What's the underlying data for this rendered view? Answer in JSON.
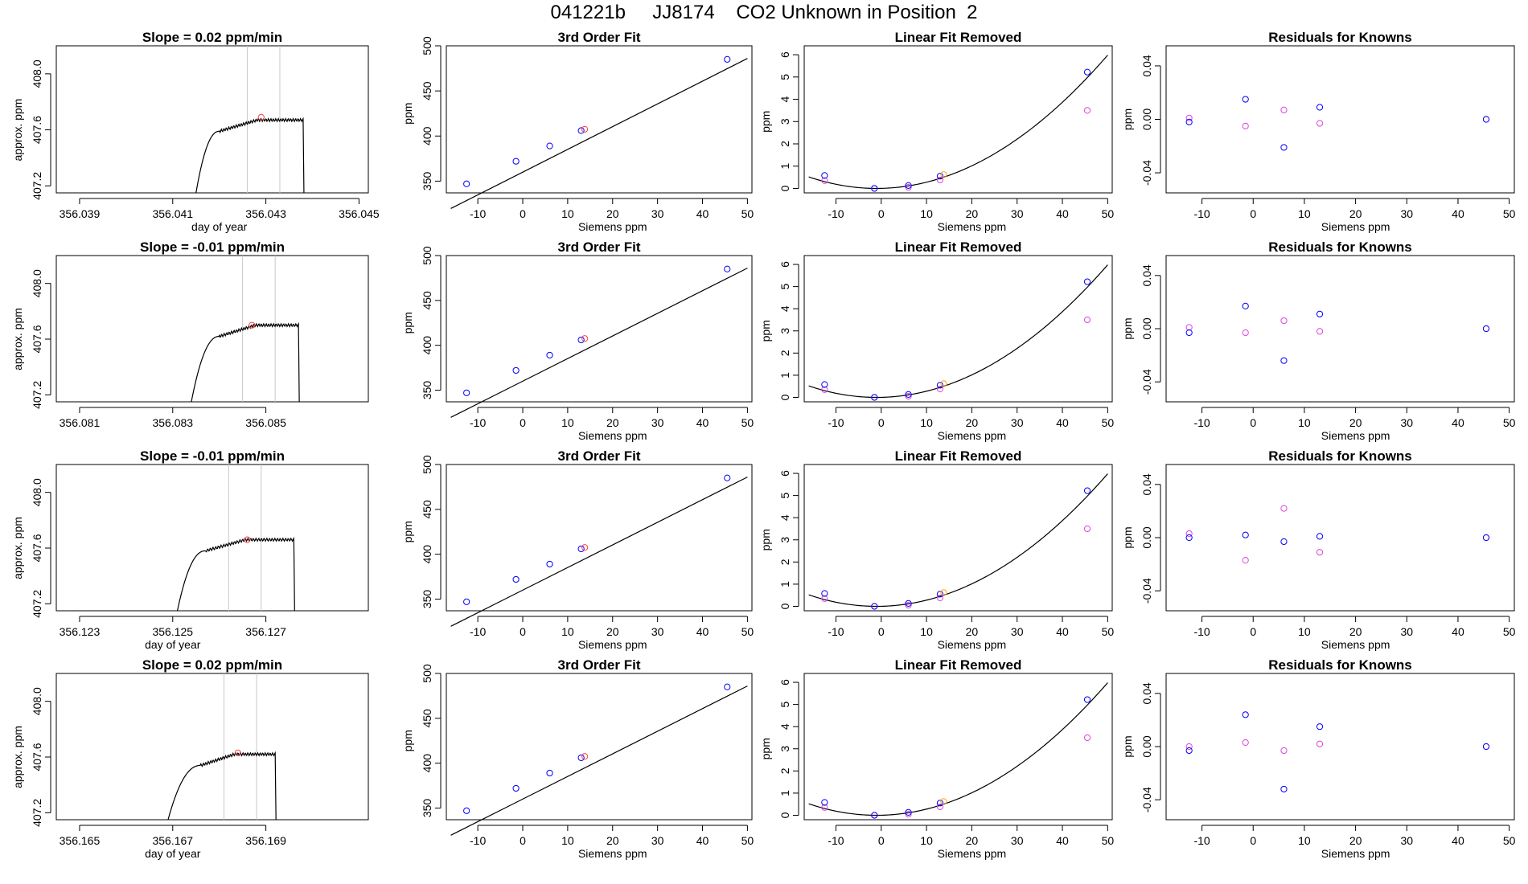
{
  "figure_title": "041221b     JJ8174    CO2 Unknown in Position  2",
  "colors": {
    "trace": "#000000",
    "marker_known": "#0000ff",
    "marker_alt": "#dd44dd",
    "marker_unknown": "#ff4040",
    "marker_unknown_alt": "#ffa500",
    "window": "#c8c8c8"
  },
  "rows": [
    {
      "trace": {
        "title": "Slope =  0.02  ppm/min",
        "xlabel": "day of year",
        "ylabel": "approx. ppm",
        "xticks": [
          "356.039",
          "356.041",
          "356.043",
          "356.045"
        ],
        "xtick_values": [
          356.039,
          356.041,
          356.043,
          356.045
        ],
        "xlim": [
          356.0385,
          356.0452
        ],
        "yticks": [
          "407.2",
          "407.6",
          "408.0"
        ],
        "ytick_values": [
          407.2,
          407.6,
          408.0
        ],
        "ylim": [
          407.15,
          408.2
        ],
        "rise_start": 356.0415,
        "plateau_start": 356.042,
        "end": 356.0438,
        "plateau": 407.67,
        "window": [
          356.0426,
          356.0433
        ],
        "unknown_point": [
          356.0429,
          407.69
        ]
      }
    },
    {
      "trace": {
        "title": "Slope =  -0.01  ppm/min",
        "xlabel": "",
        "ylabel": "approx. ppm",
        "xticks": [
          "356.081",
          "356.083",
          "356.085"
        ],
        "xtick_values": [
          356.081,
          356.083,
          356.085
        ],
        "xlim": [
          356.0805,
          356.0872
        ],
        "yticks": [
          "407.2",
          "407.6",
          "408.0"
        ],
        "ytick_values": [
          407.2,
          407.6,
          408.0
        ],
        "ylim": [
          407.15,
          408.2
        ],
        "rise_start": 356.0834,
        "plateau_start": 356.084,
        "end": 356.0857,
        "plateau": 407.7,
        "window": [
          356.0845,
          356.0852
        ],
        "unknown_point": [
          356.0847,
          407.7
        ]
      }
    },
    {
      "trace": {
        "title": "Slope =  -0.01  ppm/min",
        "xlabel": "day of year",
        "ylabel": "approx. ppm",
        "xticks": [
          "356.123",
          "356.125",
          "356.127"
        ],
        "xtick_values": [
          356.123,
          356.125,
          356.127
        ],
        "xlim": [
          356.1225,
          356.1292
        ],
        "yticks": [
          "407.2",
          "407.6",
          "408.0"
        ],
        "ytick_values": [
          407.2,
          407.6,
          408.0
        ],
        "ylim": [
          407.15,
          408.2
        ],
        "rise_start": 356.1251,
        "plateau_start": 356.1257,
        "end": 356.1276,
        "plateau": 407.66,
        "window": [
          356.1262,
          356.1269
        ],
        "unknown_point": [
          356.1266,
          407.66
        ]
      }
    },
    {
      "trace": {
        "title": "Slope =  0.02  ppm/min",
        "xlabel": "day of year",
        "ylabel": "approx. ppm",
        "xticks": [
          "356.165",
          "356.167",
          "356.169"
        ],
        "xtick_values": [
          356.165,
          356.167,
          356.169
        ],
        "xlim": [
          356.1645,
          356.1712
        ],
        "yticks": [
          "407.2",
          "407.6",
          "408.0"
        ],
        "ytick_values": [
          407.2,
          407.6,
          408.0
        ],
        "ylim": [
          407.15,
          408.2
        ],
        "rise_start": 356.1669,
        "plateau_start": 356.1676,
        "end": 356.1692,
        "plateau": 407.62,
        "window": [
          356.1681,
          356.1688
        ],
        "unknown_point": [
          356.1684,
          407.63
        ]
      }
    }
  ],
  "fit_panel": {
    "title": "3rd Order Fit",
    "xlabel": "Siemens ppm",
    "ylabel": "ppm",
    "xlim": [
      -17,
      51
    ],
    "xticks": [
      -10,
      0,
      10,
      20,
      30,
      40,
      50
    ],
    "ylim": [
      337,
      500
    ],
    "yticks": [
      350,
      400,
      450,
      500
    ],
    "line": {
      "x0": -16,
      "x1": 50,
      "y_at_0": 360,
      "slope": 2.52
    },
    "knowns": [
      [
        -12.5,
        347
      ],
      [
        -1.5,
        372
      ],
      [
        6,
        389
      ],
      [
        13,
        406
      ],
      [
        45.5,
        485
      ]
    ],
    "unknown": [
      13.8,
      407.5
    ]
  },
  "linfit_panel": {
    "title": "Linear Fit Removed",
    "xlabel": "Siemens ppm",
    "ylabel": "ppm",
    "xlim": [
      -17,
      51
    ],
    "xticks": [
      -10,
      0,
      10,
      20,
      30,
      40,
      50
    ],
    "ylim": [
      -0.2,
      6.4
    ],
    "yticks": [
      0,
      1,
      2,
      3,
      4,
      5,
      6
    ],
    "curve": {
      "x0": -16,
      "x1": 50,
      "a": 0.0016,
      "b": 0.0018,
      "c": 0.0195,
      "d": 0.057
    },
    "blue": [
      [
        -12.5,
        0.58
      ],
      [
        -1.5,
        0.0
      ],
      [
        6,
        0.13
      ],
      [
        13,
        0.55
      ],
      [
        45.5,
        5.22
      ]
    ],
    "magenta": [
      [
        -12.5,
        0.35
      ],
      [
        -1.5,
        0.0
      ],
      [
        6,
        0.05
      ],
      [
        13,
        0.38
      ],
      [
        45.5,
        3.5
      ]
    ],
    "unknown": [
      13.8,
      0.62
    ]
  },
  "resid_panel": {
    "title": "Residuals for Knowns",
    "xlabel": "Siemens ppm",
    "ylabel": "ppm",
    "xlim": [
      -17,
      51
    ],
    "xticks": [
      -10,
      0,
      10,
      20,
      30,
      40,
      50
    ],
    "ylim": [
      -0.055,
      0.055
    ],
    "yticks": [
      "-0.04",
      "0.00",
      "0.04"
    ],
    "ytick_values": [
      -0.04,
      0.0,
      0.04
    ],
    "rows": [
      {
        "blue": [
          [
            -12.5,
            -0.002
          ],
          [
            -1.5,
            0.015
          ],
          [
            6,
            -0.021
          ],
          [
            13,
            0.009
          ],
          [
            45.5,
            0.0
          ]
        ],
        "magenta": [
          [
            -12.5,
            0.001
          ],
          [
            -1.5,
            -0.005
          ],
          [
            6,
            0.007
          ],
          [
            13,
            -0.003
          ],
          [
            45.5,
            0.0
          ]
        ]
      },
      {
        "blue": [
          [
            -12.5,
            -0.003
          ],
          [
            -1.5,
            0.017
          ],
          [
            6,
            -0.024
          ],
          [
            13,
            0.011
          ],
          [
            45.5,
            0.0
          ]
        ],
        "magenta": [
          [
            -12.5,
            0.001
          ],
          [
            -1.5,
            -0.003
          ],
          [
            6,
            0.006
          ],
          [
            13,
            -0.002
          ],
          [
            45.5,
            0.0
          ]
        ]
      },
      {
        "blue": [
          [
            -12.5,
            0.0
          ],
          [
            -1.5,
            0.002
          ],
          [
            6,
            -0.003
          ],
          [
            13,
            0.001
          ],
          [
            45.5,
            0.0
          ]
        ],
        "magenta": [
          [
            -12.5,
            0.003
          ],
          [
            -1.5,
            -0.017
          ],
          [
            6,
            0.022
          ],
          [
            13,
            -0.011
          ],
          [
            45.5,
            0.0
          ]
        ]
      },
      {
        "blue": [
          [
            -12.5,
            -0.003
          ],
          [
            -1.5,
            0.024
          ],
          [
            6,
            -0.032
          ],
          [
            13,
            0.015
          ],
          [
            45.5,
            0.0
          ]
        ],
        "magenta": [
          [
            -12.5,
            0.0
          ],
          [
            -1.5,
            0.003
          ],
          [
            6,
            -0.003
          ],
          [
            13,
            0.002
          ],
          [
            45.5,
            0.0
          ]
        ]
      }
    ]
  },
  "chart_data": [
    {
      "type": "line",
      "title": "Slope =  0.02  ppm/min",
      "xlabel": "day of year",
      "ylabel": "approx. ppm",
      "xlim": [
        356.0385,
        356.0452
      ],
      "ylim": [
        407.15,
        408.2
      ],
      "grid": false,
      "x": [
        356.0415,
        356.042,
        356.0426,
        356.0433,
        356.0438
      ],
      "series": [
        {
          "values": [
            407.15,
            407.55,
            407.67,
            407.69,
            407.15
          ]
        }
      ]
    },
    {
      "type": "scatter",
      "title": "3rd Order Fit",
      "xlabel": "Siemens ppm",
      "ylabel": "ppm",
      "xlim": [
        -17,
        51
      ],
      "ylim": [
        337,
        500
      ],
      "x": [
        -12.5,
        -1.5,
        6,
        13,
        45.5
      ],
      "series": [
        {
          "values": [
            347,
            372,
            389,
            406,
            485
          ]
        }
      ]
    },
    {
      "type": "scatter",
      "title": "Linear Fit Removed",
      "xlabel": "Siemens ppm",
      "ylabel": "ppm",
      "xlim": [
        -17,
        51
      ],
      "ylim": [
        -0.2,
        6.4
      ],
      "x": [
        -12.5,
        -1.5,
        6,
        13,
        45.5
      ],
      "series": [
        {
          "values": [
            0.58,
            0.0,
            0.13,
            0.55,
            5.22
          ]
        },
        {
          "values": [
            0.35,
            0.0,
            0.05,
            0.38,
            3.5
          ]
        }
      ]
    },
    {
      "type": "scatter",
      "title": "Residuals for Knowns",
      "xlabel": "Siemens ppm",
      "ylabel": "ppm",
      "xlim": [
        -17,
        51
      ],
      "ylim": [
        -0.055,
        0.055
      ],
      "x": [
        -12.5,
        -1.5,
        6,
        13,
        45.5
      ],
      "series": [
        {
          "values": [
            -0.002,
            0.015,
            -0.021,
            0.009,
            0.0
          ]
        },
        {
          "values": [
            0.001,
            -0.005,
            0.007,
            -0.003,
            0.0
          ]
        }
      ]
    }
  ]
}
